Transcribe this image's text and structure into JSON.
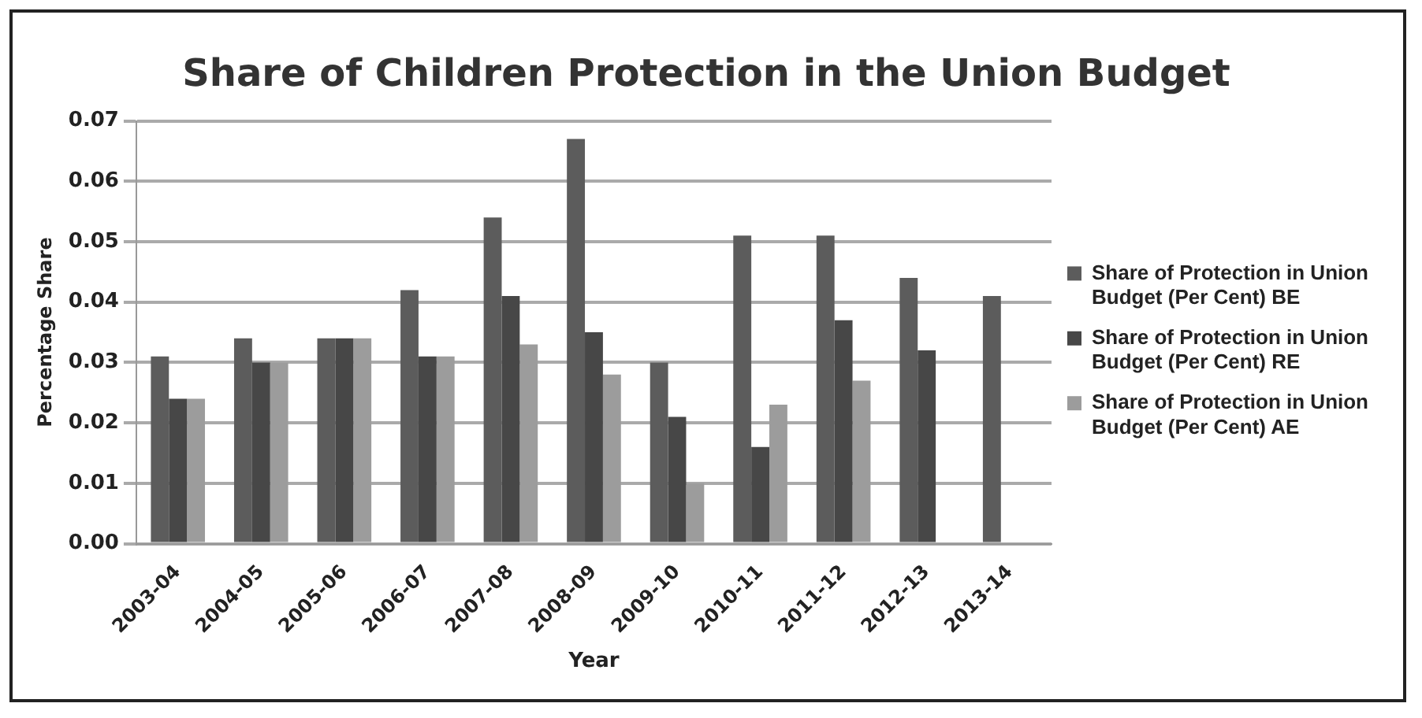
{
  "chart_data": {
    "type": "bar",
    "title": "Share of Children Protection in the Union Budget",
    "xlabel": "Year",
    "ylabel": "Percentage Share",
    "categories": [
      "2003-04",
      "2004-05",
      "2005-06",
      "2006-07",
      "2007-08",
      "2008-09",
      "2009-10",
      "2010-11",
      "2011-12",
      "2012-13",
      "2013-14"
    ],
    "series": [
      {
        "name": "Share of Protection in Union Budget (Per Cent) BE",
        "color": "#5c5c5c",
        "values": [
          0.031,
          0.034,
          0.034,
          0.042,
          0.054,
          0.067,
          0.03,
          0.051,
          0.051,
          0.044,
          0.041
        ]
      },
      {
        "name": "Share of Protection in Union Budget (Per Cent) RE",
        "color": "#474747",
        "values": [
          0.024,
          0.03,
          0.034,
          0.031,
          0.041,
          0.035,
          0.021,
          0.016,
          0.037,
          0.032,
          null
        ]
      },
      {
        "name": "Share of Protection in Union Budget (Per Cent) AE",
        "color": "#9c9c9c",
        "values": [
          0.024,
          0.03,
          0.034,
          0.031,
          0.033,
          0.028,
          0.01,
          0.023,
          0.027,
          null,
          null
        ]
      }
    ],
    "ylim": [
      0,
      0.07
    ],
    "yticks": [
      {
        "value": 0,
        "label": "0.00"
      },
      {
        "value": 0.01,
        "label": "0.01"
      },
      {
        "value": 0.02,
        "label": "0.02"
      },
      {
        "value": 0.03,
        "label": "0.03"
      },
      {
        "value": 0.04,
        "label": "0.04"
      },
      {
        "value": 0.05,
        "label": "0.05"
      },
      {
        "value": 0.06,
        "label": "0.06"
      },
      {
        "value": 0.07,
        "label": "0.07"
      }
    ],
    "grid": "y",
    "legend": "right"
  }
}
